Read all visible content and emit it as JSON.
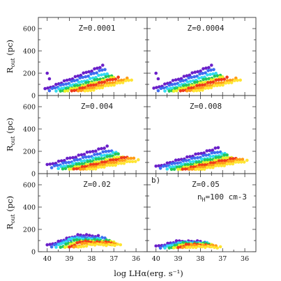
{
  "chart_data": {
    "type": "scatter",
    "xlabel": "log LHα(erg. s⁻¹)",
    "ylabel_main": "R",
    "ylabel_sub": "out",
    "ylabel_unit": "(pc)",
    "x_ticks": [
      "40",
      "39",
      "38",
      "37",
      "36"
    ],
    "y_ticks": [
      "0",
      "200",
      "400",
      "600"
    ],
    "xlim": [
      40.4,
      35.5
    ],
    "ylim": [
      0,
      700
    ],
    "inverted_x": true,
    "grid": false,
    "series_colors": [
      "#6a1fc9",
      "#3e6cf0",
      "#33d9f2",
      "#22c95a",
      "#e8f028",
      "#ff9d17",
      "#ef3a1a",
      "#ffe433"
    ],
    "panels": [
      {
        "label": "Z=0.0001",
        "extra": "",
        "series": [
          {
            "color": "#6a1fc9",
            "x": [
              40.1,
              37.5
            ],
            "y": [
              55,
              265
            ],
            "extra_points": [
              [
                40.0,
                200
              ],
              [
                39.9,
                150
              ]
            ]
          },
          {
            "color": "#3e6cf0",
            "x": [
              39.9,
              37.4
            ],
            "y": [
              50,
              235
            ]
          },
          {
            "color": "#33d9f2",
            "x": [
              39.6,
              37.3
            ],
            "y": [
              45,
              200
            ]
          },
          {
            "color": "#22c95a",
            "x": [
              39.4,
              37.1
            ],
            "y": [
              42,
              180
            ]
          },
          {
            "color": "#e8f028",
            "x": [
              39.2,
              37.0
            ],
            "y": [
              40,
              160
            ]
          },
          {
            "color": "#ef3a1a",
            "x": [
              38.9,
              36.8
            ],
            "y": [
              40,
              160
            ]
          },
          {
            "color": "#ff9d17",
            "x": [
              38.6,
              36.4
            ],
            "y": [
              38,
              150
            ]
          },
          {
            "color": "#ffe433",
            "x": [
              38.3,
              36.2
            ],
            "y": [
              35,
              140
            ]
          }
        ]
      },
      {
        "label": "Z=0.0004",
        "extra": "",
        "series": [
          {
            "color": "#6a1fc9",
            "x": [
              40.1,
              37.5
            ],
            "y": [
              60,
              265
            ],
            "extra_points": [
              [
                40.0,
                200
              ],
              [
                39.9,
                150
              ]
            ]
          },
          {
            "color": "#3e6cf0",
            "x": [
              39.9,
              37.4
            ],
            "y": [
              50,
              235
            ]
          },
          {
            "color": "#33d9f2",
            "x": [
              39.6,
              37.3
            ],
            "y": [
              45,
              205
            ]
          },
          {
            "color": "#22c95a",
            "x": [
              39.4,
              37.1
            ],
            "y": [
              42,
              185
            ]
          },
          {
            "color": "#e8f028",
            "x": [
              39.2,
              37.0
            ],
            "y": [
              40,
              165
            ]
          },
          {
            "color": "#ef3a1a",
            "x": [
              38.9,
              36.8
            ],
            "y": [
              40,
              160
            ]
          },
          {
            "color": "#ff9d17",
            "x": [
              38.6,
              36.4
            ],
            "y": [
              38,
              150
            ]
          },
          {
            "color": "#ffe433",
            "x": [
              38.3,
              36.2
            ],
            "y": [
              35,
              140
            ]
          }
        ]
      },
      {
        "label": "Z=0.004",
        "extra": "",
        "series": [
          {
            "color": "#6a1fc9",
            "x": [
              40.0,
              37.3
            ],
            "y": [
              75,
              240
            ]
          },
          {
            "color": "#3e6cf0",
            "x": [
              39.8,
              37.1
            ],
            "y": [
              60,
              210
            ]
          },
          {
            "color": "#33d9f2",
            "x": [
              39.5,
              36.9
            ],
            "y": [
              50,
              190
            ]
          },
          {
            "color": "#22c95a",
            "x": [
              39.3,
              36.8
            ],
            "y": [
              45,
              175
            ]
          },
          {
            "color": "#e8f028",
            "x": [
              39.0,
              36.6
            ],
            "y": [
              40,
              155
            ]
          },
          {
            "color": "#ef3a1a",
            "x": [
              38.8,
              36.4
            ],
            "y": [
              40,
              150
            ]
          },
          {
            "color": "#ff9d17",
            "x": [
              38.5,
              36.1
            ],
            "y": [
              35,
              140
            ]
          },
          {
            "color": "#ffe433",
            "x": [
              38.2,
              35.9
            ],
            "y": [
              35,
              120
            ]
          }
        ]
      },
      {
        "label": "Z=0.008",
        "extra": "",
        "series": [
          {
            "color": "#6a1fc9",
            "x": [
              40.0,
              37.2
            ],
            "y": [
              60,
              230
            ]
          },
          {
            "color": "#3e6cf0",
            "x": [
              39.8,
              37.1
            ],
            "y": [
              55,
              200
            ]
          },
          {
            "color": "#33d9f2",
            "x": [
              39.5,
              36.9
            ],
            "y": [
              45,
              180
            ]
          },
          {
            "color": "#22c95a",
            "x": [
              39.3,
              36.8
            ],
            "y": [
              40,
              165
            ]
          },
          {
            "color": "#e8f028",
            "x": [
              39.0,
              36.6
            ],
            "y": [
              38,
              150
            ]
          },
          {
            "color": "#ef3a1a",
            "x": [
              38.8,
              36.4
            ],
            "y": [
              38,
              140
            ]
          },
          {
            "color": "#ff9d17",
            "x": [
              38.5,
              36.1
            ],
            "y": [
              35,
              130
            ]
          },
          {
            "color": "#ffe433",
            "x": [
              38.2,
              35.9
            ],
            "y": [
              32,
              115
            ]
          }
        ]
      },
      {
        "label": "Z=0.02",
        "extra": "",
        "series": [
          {
            "color": "#6a1fc9",
            "x": [
              40.0,
              38.6,
              37.7
            ],
            "y": [
              55,
              150,
              140
            ]
          },
          {
            "color": "#3e6cf0",
            "x": [
              39.8,
              38.7,
              37.4
            ],
            "y": [
              50,
              130,
              120
            ]
          },
          {
            "color": "#33d9f2",
            "x": [
              39.6,
              38.9,
              37.6
            ],
            "y": [
              45,
              120,
              110
            ]
          },
          {
            "color": "#22c95a",
            "x": [
              39.4,
              38.7,
              37.2
            ],
            "y": [
              42,
              105,
              100
            ]
          },
          {
            "color": "#e8f028",
            "x": [
              39.2,
              38.6,
              37.0
            ],
            "y": [
              40,
              90,
              85
            ]
          },
          {
            "color": "#ef3a1a",
            "x": [
              39.0,
              38.5,
              37.1
            ],
            "y": [
              40,
              90,
              80
            ]
          },
          {
            "color": "#ff9d17",
            "x": [
              38.8,
              38.3,
              36.9
            ],
            "y": [
              38,
              75,
              70
            ]
          },
          {
            "color": "#ffe433",
            "x": [
              38.6,
              38.1,
              36.7
            ],
            "y": [
              35,
              65,
              60
            ]
          }
        ]
      },
      {
        "label": "Z=0.05",
        "extra": "nH=100 cm-3",
        "extra_main": "n",
        "extra_sub": "H",
        "extra_tail": "=100 cm-3",
        "corner": "b)",
        "series": [
          {
            "color": "#6a1fc9",
            "x": [
              40.0,
              39.0,
              38.0
            ],
            "y": [
              45,
              95,
              90
            ]
          },
          {
            "color": "#3e6cf0",
            "x": [
              39.8,
              38.9,
              37.8
            ],
            "y": [
              40,
              85,
              80
            ]
          },
          {
            "color": "#33d9f2",
            "x": [
              39.6,
              38.9,
              37.7
            ],
            "y": [
              38,
              80,
              75
            ]
          },
          {
            "color": "#22c95a",
            "x": [
              39.4,
              38.8,
              37.6
            ],
            "y": [
              36,
              75,
              70
            ]
          },
          {
            "color": "#e8f028",
            "x": [
              39.2,
              38.7,
              37.5
            ],
            "y": [
              35,
              65,
              60
            ]
          },
          {
            "color": "#ef3a1a",
            "x": [
              39.0,
              38.6,
              37.5
            ],
            "y": [
              35,
              65,
              55
            ]
          },
          {
            "color": "#ff9d17",
            "x": [
              38.8,
              38.4,
              37.3
            ],
            "y": [
              34,
              55,
              50
            ]
          },
          {
            "color": "#ffe433",
            "x": [
              38.6,
              38.2,
              37.1
            ],
            "y": [
              33,
              45,
              40
            ]
          }
        ]
      }
    ]
  }
}
